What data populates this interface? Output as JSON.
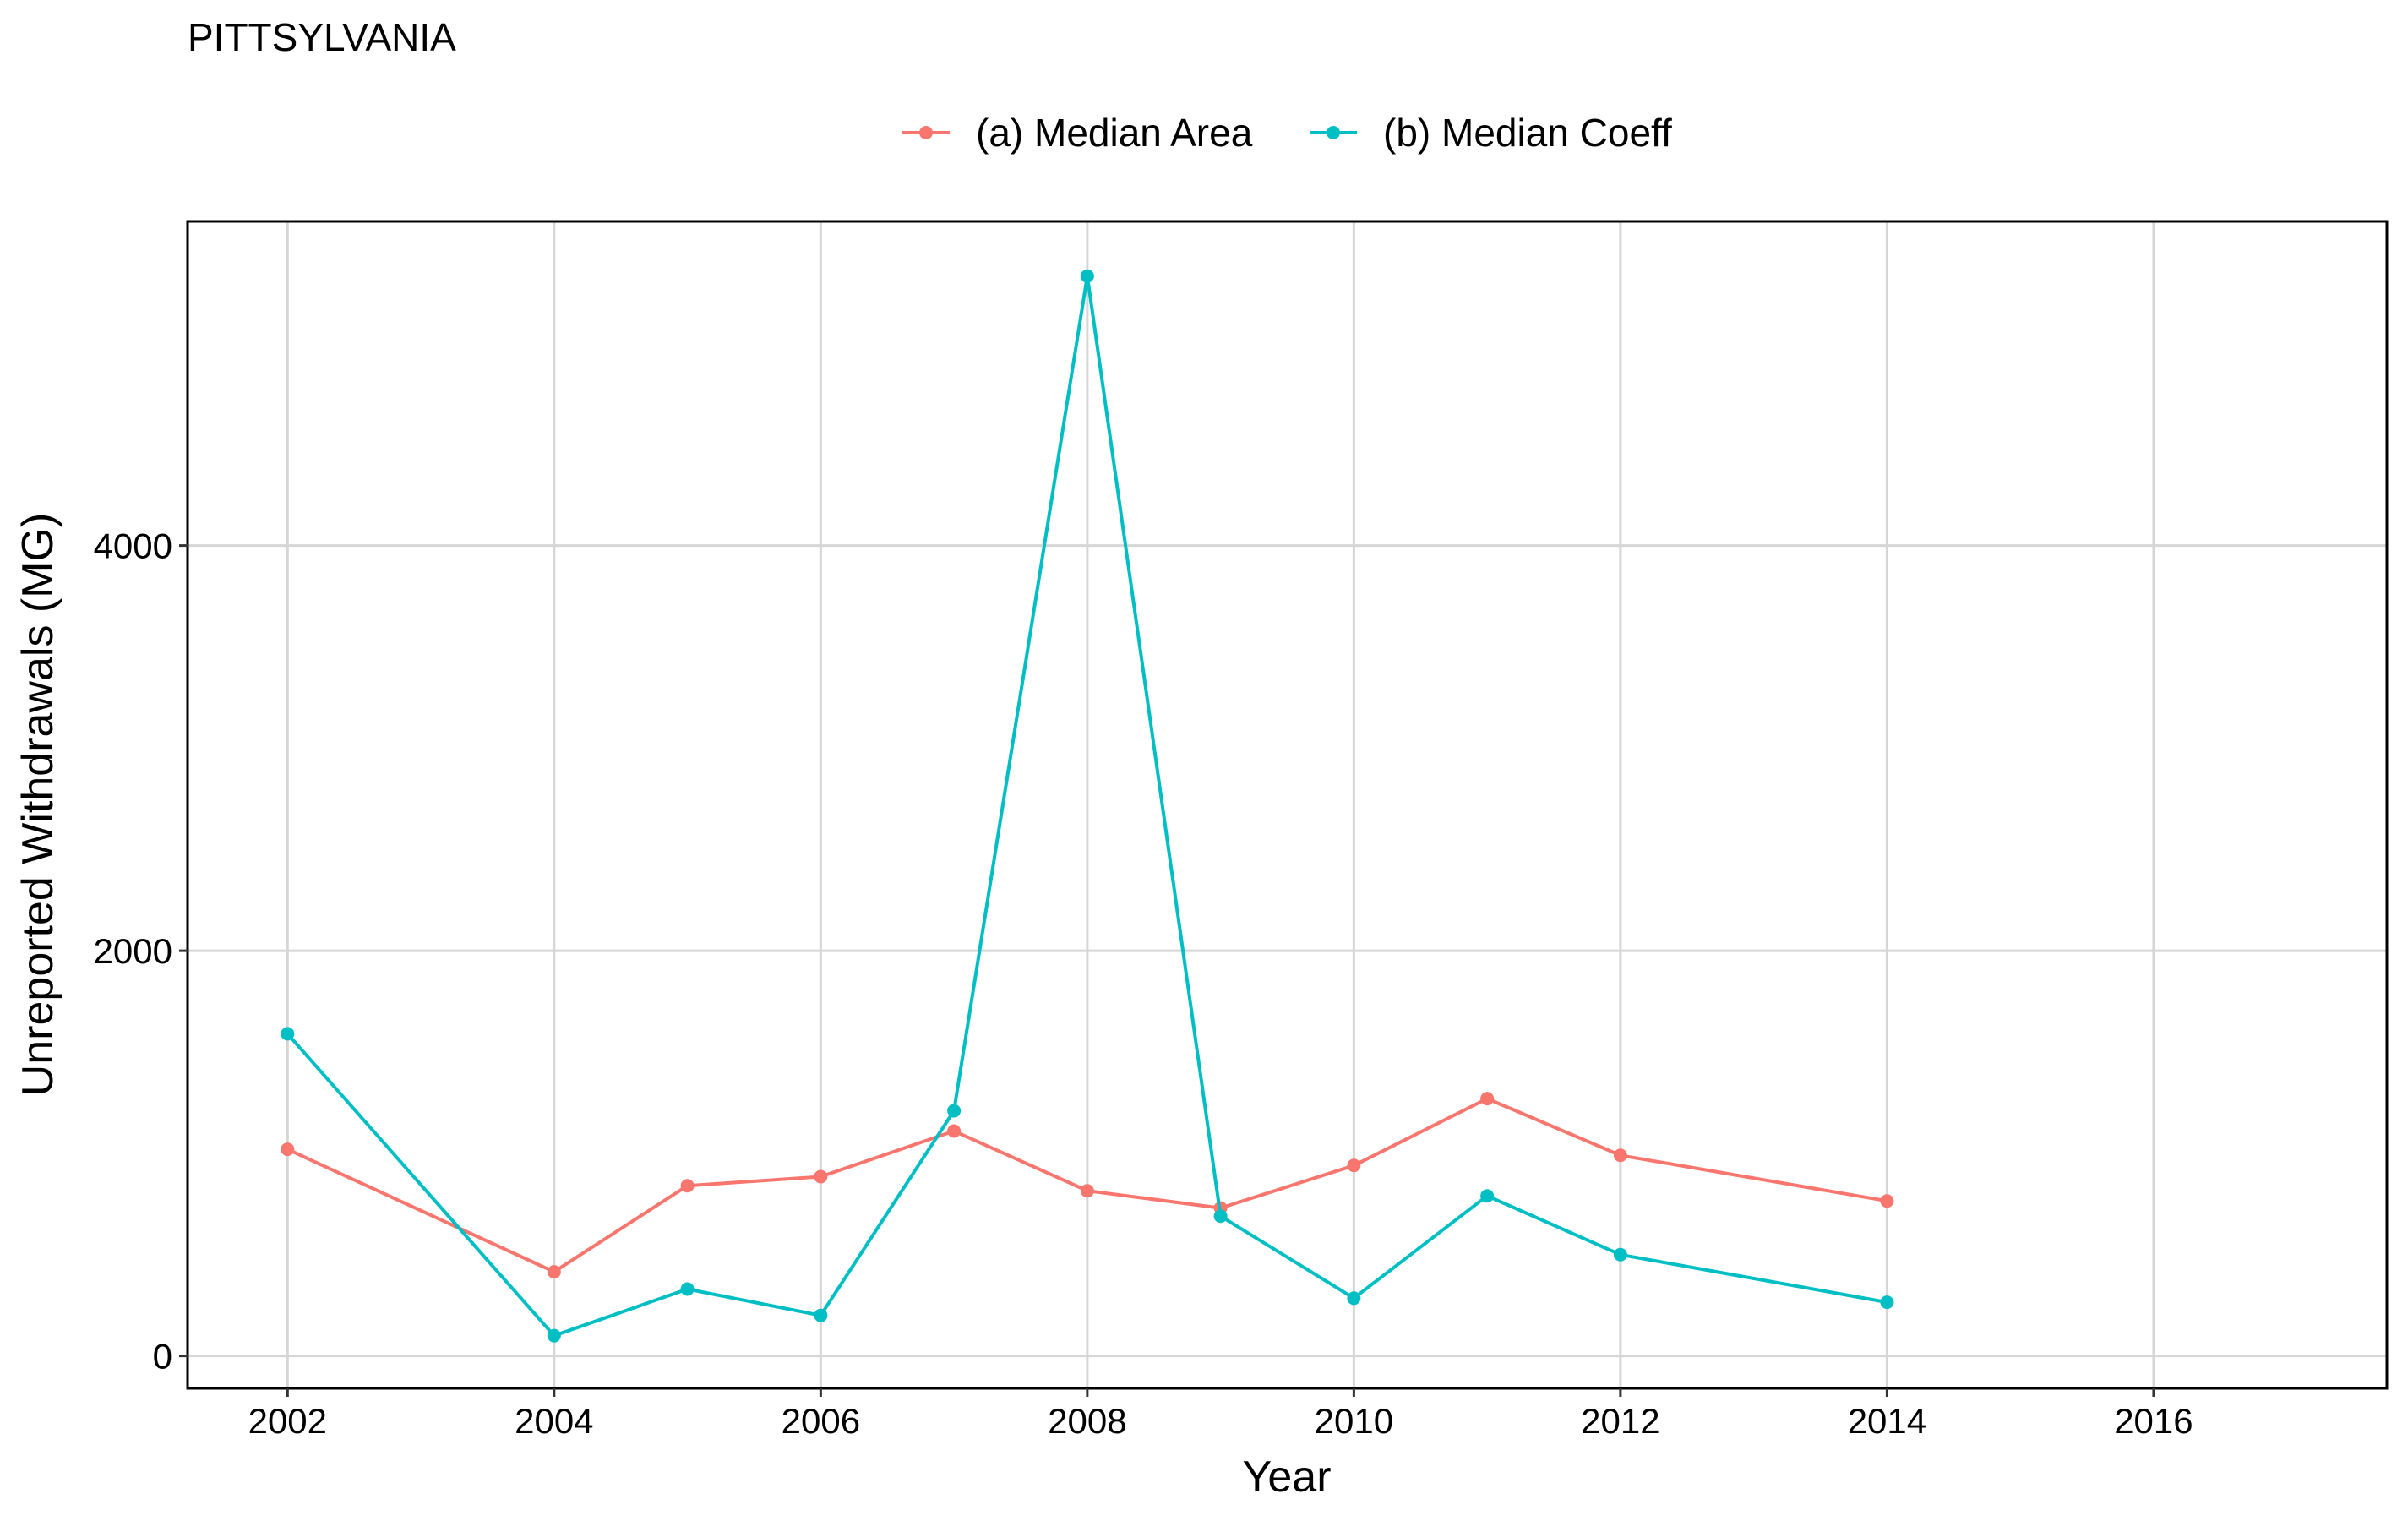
{
  "chart_data": {
    "type": "line",
    "title": "PITTSYLVANIA",
    "xlabel": "Year",
    "ylabel": "Unreported Withdrawals (MG)",
    "xlim": [
      2001.25,
      2017.75
    ],
    "ylim": [
      -160,
      5600
    ],
    "x_ticks": [
      2002,
      2004,
      2006,
      2008,
      2010,
      2012,
      2014,
      2016
    ],
    "y_ticks": [
      0,
      2000,
      4000
    ],
    "grid": true,
    "legend_position": "top",
    "series": [
      {
        "name": "(a) Median Area",
        "color": "#F8766D",
        "x": [
          2002,
          2004,
          2005,
          2006,
          2007,
          2008,
          2009,
          2010,
          2011,
          2012,
          2014
        ],
        "y": [
          1020,
          415,
          840,
          885,
          1110,
          815,
          730,
          940,
          1270,
          990,
          765
        ]
      },
      {
        "name": "(b) Median Coeff",
        "color": "#00BFC4",
        "x": [
          2002,
          2004,
          2005,
          2006,
          2007,
          2008,
          2009,
          2010,
          2011,
          2012,
          2014
        ],
        "y": [
          1590,
          100,
          330,
          200,
          1210,
          5330,
          690,
          285,
          790,
          500,
          265
        ]
      }
    ]
  }
}
